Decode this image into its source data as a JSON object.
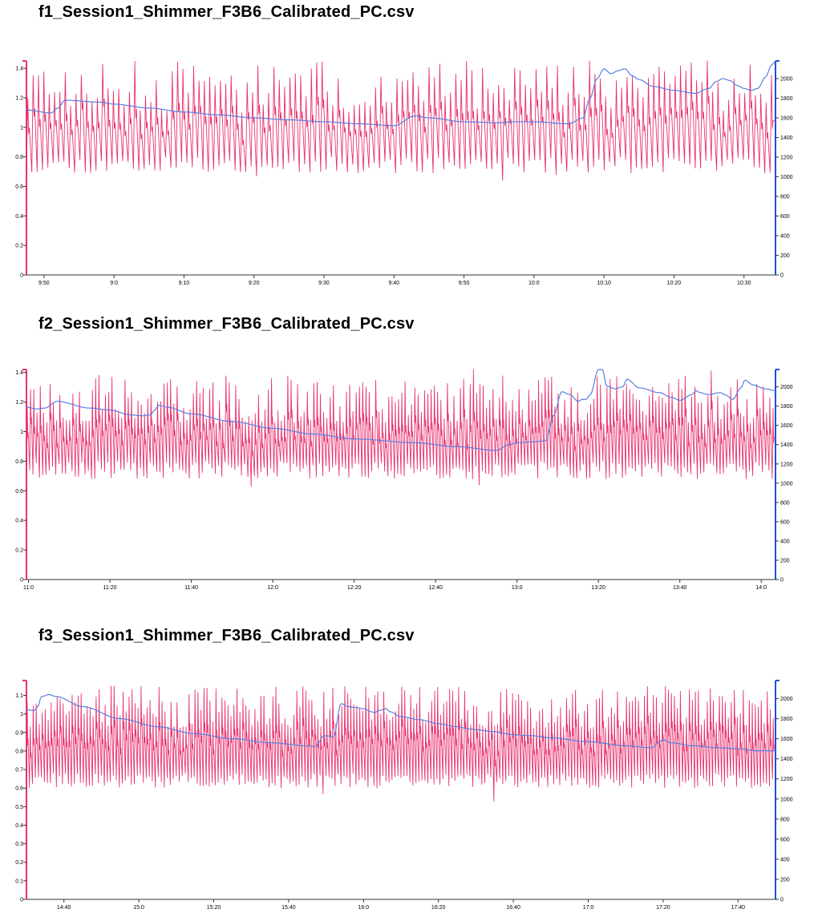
{
  "colors": {
    "left_axis": "#e8336d",
    "right_axis": "#1f4fd8",
    "series_a": "#e8336d",
    "series_b": "#5b7ee0",
    "axis_gray": "#555555"
  },
  "chart_data": [
    {
      "type": "line",
      "title": "f1_Session1_Shimmer_F3B6_Calibrated_PC.csv",
      "xlabel": "",
      "ylabel_left": "",
      "ylabel_right": "",
      "x_unit": "minutes",
      "xlim": [
        527.5,
        634.5
      ],
      "x_tick_labels": [
        "9:50",
        "9:0",
        "9:10",
        "9:20",
        "9:30",
        "9:40",
        "9:50",
        "10:0",
        "10:10",
        "10:20",
        "10:30"
      ],
      "x_tick_values": [
        530,
        540,
        550,
        560,
        570,
        580,
        590,
        600,
        610,
        620,
        630
      ],
      "ylim_left": [
        0,
        1.45
      ],
      "yticks_left": [
        0,
        0.2,
        0.4,
        0.6,
        0.8,
        1,
        1.2,
        1.4
      ],
      "ylim_right": [
        0,
        2180
      ],
      "yticks_right": [
        0,
        200,
        400,
        600,
        800,
        1000,
        1200,
        1400,
        1600,
        1800,
        2000
      ],
      "series": [
        {
          "axis": "left",
          "color": "#e8336d",
          "style": "pulse",
          "cycles": 140,
          "baseline_range": [
            0.69,
            0.8
          ],
          "peak_range": [
            1.1,
            1.45
          ],
          "spikes": [
            [
              625,
              1.45
            ],
            [
              608,
              1.45
            ],
            [
              563,
              1.41
            ],
            [
              593,
              1.4
            ],
            [
              600,
              1.39
            ]
          ],
          "dips": [
            [
              595.5,
              0.64
            ],
            [
              560.5,
              0.67
            ],
            [
              603,
              0.68
            ]
          ],
          "seed": 11
        },
        {
          "axis": "right",
          "color": "#5b7ee0",
          "style": "smooth",
          "x": [
            527.5,
            531,
            532,
            533,
            538,
            540,
            545,
            550,
            555,
            560,
            565,
            570,
            575,
            580,
            583,
            585,
            590,
            595,
            597,
            600,
            605,
            607,
            608,
            609,
            610,
            611,
            612,
            613,
            614,
            615,
            617,
            620,
            623,
            625,
            626,
            627,
            628,
            629,
            630,
            631,
            632,
            633,
            634,
            634.5
          ],
          "y": [
            1680,
            1650,
            1700,
            1780,
            1760,
            1740,
            1700,
            1660,
            1630,
            1600,
            1580,
            1560,
            1540,
            1520,
            1620,
            1600,
            1560,
            1550,
            1560,
            1560,
            1540,
            1600,
            1800,
            2000,
            2100,
            2050,
            2080,
            2100,
            2030,
            1990,
            1920,
            1880,
            1850,
            1900,
            1970,
            2000,
            1980,
            1930,
            1900,
            1880,
            1900,
            2010,
            2140,
            2180
          ]
        }
      ]
    },
    {
      "type": "line",
      "title": "f2_Session1_Shimmer_F3B6_Calibrated_PC.csv",
      "xlabel": "",
      "ylabel_left": "",
      "ylabel_right": "",
      "x_unit": "minutes",
      "xlim": [
        659.5,
        843.5
      ],
      "x_tick_labels": [
        "11:0",
        "11:20",
        "11:40",
        "12:0",
        "12:20",
        "12:40",
        "13:0",
        "13:20",
        "13:40",
        "14:0"
      ],
      "x_tick_values": [
        660,
        680,
        700,
        720,
        740,
        760,
        780,
        800,
        820,
        840
      ],
      "ylim_left": [
        0,
        1.42
      ],
      "yticks_left": [
        0,
        0.2,
        0.4,
        0.6,
        0.8,
        1,
        1.2,
        1.4
      ],
      "ylim_right": [
        0,
        2180
      ],
      "yticks_right": [
        0,
        200,
        400,
        600,
        800,
        1000,
        1200,
        1400,
        1600,
        1800,
        2000
      ],
      "series": [
        {
          "axis": "left",
          "color": "#e8336d",
          "style": "pulse",
          "cycles": 230,
          "baseline_range": [
            0.68,
            0.8
          ],
          "peak_range": [
            1.05,
            1.38
          ],
          "spikes": [
            [
              769,
              1.42
            ],
            [
              828,
              1.41
            ],
            [
              677,
              1.38
            ],
            [
              720,
              1.36
            ],
            [
              800,
              1.37
            ]
          ],
          "dips": [
            [
              714.5,
              0.63
            ],
            [
              770.5,
              0.64
            ]
          ],
          "seed": 23
        },
        {
          "axis": "right",
          "color": "#5b7ee0",
          "style": "smooth",
          "x": [
            659.5,
            662,
            664,
            667,
            675,
            680,
            685,
            688,
            690,
            691,
            692,
            694,
            700,
            710,
            720,
            730,
            740,
            755,
            765,
            775,
            778,
            780,
            784,
            787,
            789,
            791,
            793,
            795,
            796,
            797,
            798,
            800,
            801,
            802,
            804,
            806,
            807,
            810,
            815,
            818,
            820,
            823,
            824,
            825,
            827,
            830,
            831,
            833,
            835,
            836,
            838,
            841,
            843.5
          ],
          "y": [
            1790,
            1770,
            1780,
            1850,
            1780,
            1760,
            1710,
            1700,
            1710,
            1760,
            1810,
            1790,
            1720,
            1640,
            1570,
            1510,
            1460,
            1420,
            1380,
            1340,
            1400,
            1420,
            1430,
            1440,
            1700,
            1950,
            1920,
            1850,
            1870,
            1870,
            1920,
            2180,
            2180,
            2010,
            1980,
            2000,
            2080,
            1990,
            1940,
            1890,
            1860,
            1920,
            1960,
            1940,
            1920,
            1940,
            1920,
            1870,
            1990,
            2070,
            2020,
            1980,
            1960
          ]
        }
      ]
    },
    {
      "type": "line",
      "title": "f3_Session1_Shimmer_F3B6_Calibrated_PC.csv",
      "xlabel": "",
      "ylabel_left": "",
      "ylabel_right": "",
      "x_unit": "minutes",
      "xlim": [
        870,
        1070
      ],
      "x_tick_labels": [
        "14:40",
        "15:0",
        "15:20",
        "15:40",
        "16:0",
        "16:20",
        "16:40",
        "17:0",
        "17:20",
        "17:40"
      ],
      "x_tick_values": [
        880,
        900,
        920,
        940,
        960,
        980,
        1000,
        1020,
        1040,
        1060
      ],
      "ylim_left": [
        0,
        1.18
      ],
      "yticks_left": [
        0,
        0.1,
        0.2,
        0.3,
        0.4,
        0.5,
        0.6,
        0.7,
        0.8,
        0.9,
        1,
        1.1
      ],
      "ylim_right": [
        0,
        2180
      ],
      "yticks_right": [
        0,
        200,
        400,
        600,
        800,
        1000,
        1200,
        1400,
        1600,
        1800,
        2000
      ],
      "series": [
        {
          "axis": "left",
          "color": "#e8336d",
          "style": "pulse",
          "cycles": 250,
          "baseline_range": [
            0.6,
            0.68
          ],
          "peak_range": [
            0.92,
            1.15
          ],
          "spikes": [
            [
              893,
              1.15
            ],
            [
              915,
              1.13
            ],
            [
              1047,
              1.13
            ],
            [
              1028,
              1.12
            ],
            [
              1000,
              1.11
            ],
            [
              955.5,
              1.11
            ]
          ],
          "dips": [
            [
              994.5,
              0.53
            ],
            [
              949.5,
              0.57
            ]
          ],
          "seed": 37
        },
        {
          "axis": "right",
          "color": "#5b7ee0",
          "style": "smooth",
          "x": [
            870,
            872,
            873,
            874,
            876,
            878,
            885,
            895,
            905,
            915,
            925,
            935,
            945,
            947,
            948,
            949,
            950,
            952,
            954,
            956,
            958,
            960,
            962,
            963,
            964,
            966,
            967,
            970,
            975,
            980,
            985,
            988,
            990,
            995,
            1000,
            1005,
            1010,
            1020,
            1030,
            1037,
            1039,
            1040,
            1042,
            1048,
            1055,
            1060,
            1065,
            1070
          ],
          "y": [
            1890,
            1880,
            1920,
            2020,
            2040,
            2020,
            1920,
            1800,
            1720,
            1650,
            1600,
            1560,
            1530,
            1520,
            1560,
            1620,
            1630,
            1620,
            1950,
            1920,
            1910,
            1900,
            1870,
            1860,
            1880,
            1900,
            1870,
            1820,
            1790,
            1750,
            1720,
            1700,
            1690,
            1670,
            1640,
            1630,
            1610,
            1570,
            1530,
            1510,
            1570,
            1590,
            1560,
            1530,
            1510,
            1500,
            1480,
            1480
          ]
        }
      ]
    }
  ]
}
